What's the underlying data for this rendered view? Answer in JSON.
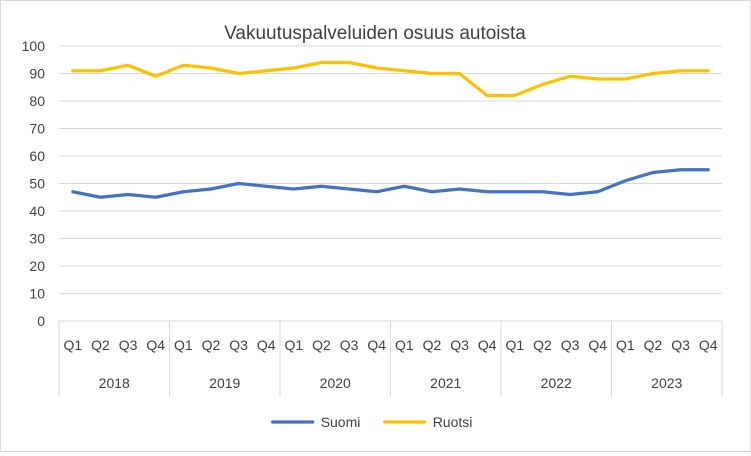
{
  "chart_data": {
    "type": "line",
    "title": "Vakuutuspalveluiden osuus autoista",
    "xlabel": "",
    "ylabel": "",
    "ylim": [
      0,
      100
    ],
    "yticks": [
      0,
      10,
      20,
      30,
      40,
      50,
      60,
      70,
      80,
      90,
      100
    ],
    "years": [
      "2018",
      "2019",
      "2020",
      "2021",
      "2022",
      "2023"
    ],
    "quarters": [
      "Q1",
      "Q2",
      "Q3",
      "Q4"
    ],
    "grid": true,
    "legend_position": "bottom",
    "series": [
      {
        "name": "Suomi",
        "color": "#4472C4",
        "values": [
          47,
          45,
          46,
          45,
          47,
          48,
          50,
          49,
          48,
          49,
          48,
          47,
          49,
          47,
          48,
          47,
          47,
          47,
          46,
          47,
          51,
          54,
          55,
          55
        ]
      },
      {
        "name": "Ruotsi",
        "color": "#FFC000",
        "values": [
          91,
          91,
          93,
          89,
          93,
          92,
          90,
          91,
          92,
          94,
          94,
          92,
          91,
          90,
          90,
          82,
          82,
          86,
          89,
          88,
          88,
          90,
          91,
          91
        ]
      }
    ]
  }
}
